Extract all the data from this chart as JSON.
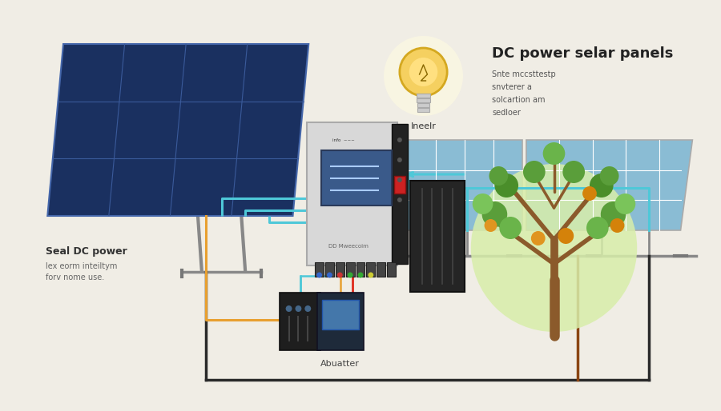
{
  "bg_color": "#f0ede5",
  "title": "DC power selar panels",
  "subtitle_lines": [
    "Snte mccsttestр",
    "snvterer a",
    "solcartion am",
    "sedloer"
  ],
  "left_label_title": "Seal DC power",
  "left_label_lines": [
    "lex eorm inteiltym",
    "forv nome use."
  ],
  "bulb_label": "Ineelr",
  "bottom_label": "Abuatter",
  "wire_blue": "#4ec8d8",
  "wire_orange": "#e8a030",
  "wire_red": "#e03020",
  "wire_dark": "#2a2a2a",
  "wire_brown": "#8B4513",
  "panel_dark_blue": "#1a3060",
  "panel_light_blue": "#8abcd4",
  "inverter_gray": "#d8d8d8",
  "battery_dark": "#2a2a2a",
  "tree_green": "#5a9e3a",
  "tree_light_bg": "#d5eaaa",
  "tree_trunk": "#8B5A2B"
}
